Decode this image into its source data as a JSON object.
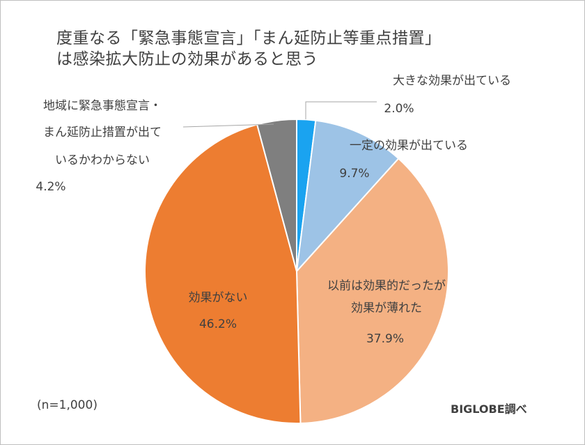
{
  "chart_data": {
    "type": "pie",
    "title": "度重なる「緊急事態宣言」「まん延防止等重点措置」は感染拡大防止の効果があると思う",
    "title_lines": [
      "度重なる「緊急事態宣言」「まん延防止等重点措置」",
      "は感染拡大防止の効果があると思う"
    ],
    "slices": [
      {
        "label_lines": [
          "大きな効果が出ている"
        ],
        "value_label": "2.0%",
        "value": 2.0,
        "color": "#1aa3f0"
      },
      {
        "label_lines": [
          "一定の効果が出ている"
        ],
        "value_label": "9.7%",
        "value": 9.7,
        "color": "#9dc3e6"
      },
      {
        "label_lines": [
          "以前は効果的だったが",
          "効果が薄れた"
        ],
        "value_label": "37.9%",
        "value": 37.9,
        "color": "#f4b183"
      },
      {
        "label_lines": [
          "効果がない"
        ],
        "value_label": "46.2%",
        "value": 46.2,
        "color": "#ed7d31"
      },
      {
        "label_lines": [
          "地域に緊急事態宣言・",
          "まん延防止措置が出て",
          "いるかわからない"
        ],
        "value_label": "4.2%",
        "value": 4.2,
        "color": "#7f7f7f"
      }
    ],
    "legend": "none"
  },
  "note": "(n=1,000)",
  "source": "BIGLOBE調べ"
}
